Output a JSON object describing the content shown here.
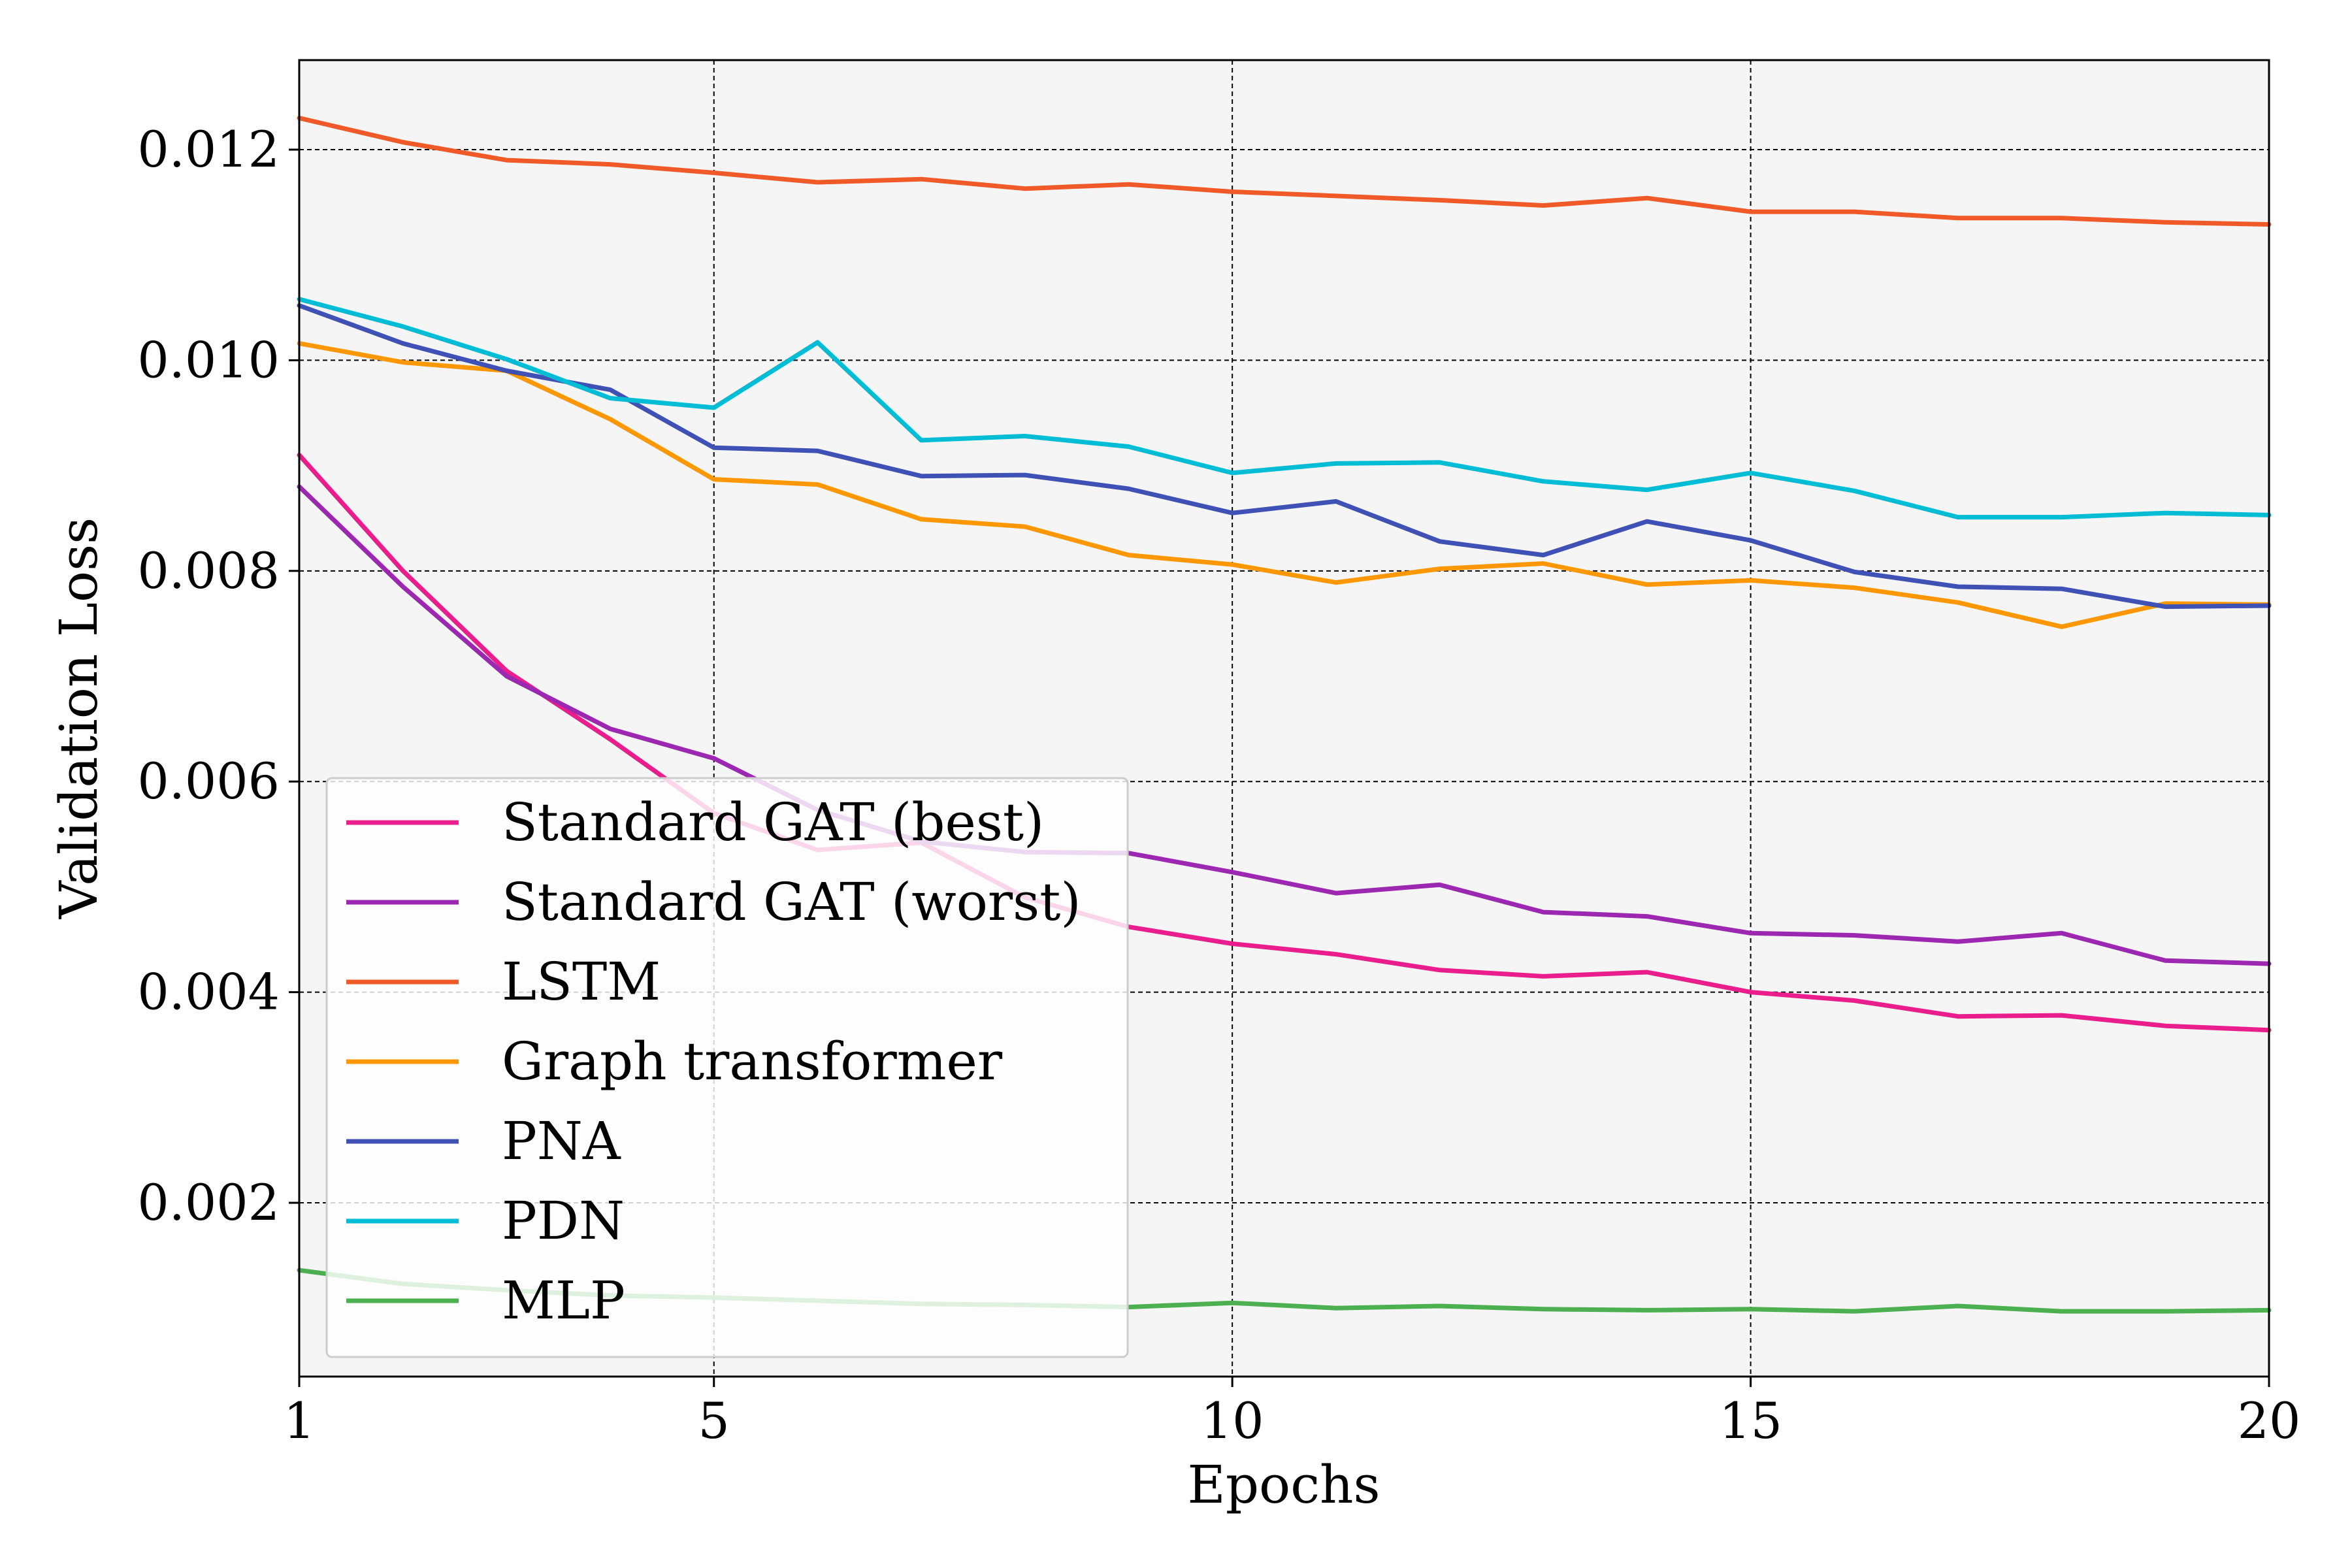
{
  "chart_data": {
    "type": "line",
    "xlabel": "Epochs",
    "ylabel": "Validation Loss",
    "xlim": [
      1,
      20
    ],
    "ylim": [
      0.00035,
      0.01285
    ],
    "x_ticks": [
      1,
      5,
      10,
      15,
      20
    ],
    "y_ticks": [
      0.002,
      0.004,
      0.006,
      0.008,
      0.01,
      0.012
    ],
    "y_tick_labels": [
      "0.002",
      "0.004",
      "0.006",
      "0.008",
      "0.010",
      "0.012"
    ],
    "grid": true,
    "legend_position": "lower-left",
    "background_color": "#f5f5f5",
    "x": [
      1,
      2,
      3,
      4,
      5,
      6,
      7,
      8,
      9,
      10,
      11,
      12,
      13,
      14,
      15,
      16,
      17,
      18,
      19,
      20
    ],
    "series": [
      {
        "name": "Standard GAT (best)",
        "color": "#e91e8c",
        "values": [
          0.0091,
          0.008,
          0.00705,
          0.0064,
          0.0057,
          0.00535,
          0.00542,
          0.0049,
          0.00462,
          0.00446,
          0.00436,
          0.00421,
          0.00415,
          0.00419,
          0.004,
          0.00392,
          0.00377,
          0.00378,
          0.00368,
          0.00364
        ]
      },
      {
        "name": "Standard GAT (worst)",
        "color": "#9c27b0",
        "values": [
          0.0088,
          0.00785,
          0.007,
          0.0065,
          0.00622,
          0.00573,
          0.00543,
          0.00533,
          0.00532,
          0.00514,
          0.00494,
          0.00502,
          0.00476,
          0.00472,
          0.00456,
          0.00454,
          0.00448,
          0.00456,
          0.0043,
          0.00427
        ]
      },
      {
        "name": "LSTM",
        "color": "#f05a28",
        "values": [
          0.0123,
          0.01207,
          0.0119,
          0.01186,
          0.01178,
          0.01169,
          0.01172,
          0.01163,
          0.01167,
          0.0116,
          0.01156,
          0.01152,
          0.01147,
          0.01154,
          0.01141,
          0.01141,
          0.01135,
          0.01135,
          0.01131,
          0.01129
        ]
      },
      {
        "name": "Graph transformer",
        "color": "#ff9800",
        "values": [
          0.01016,
          0.00998,
          0.0099,
          0.00944,
          0.00887,
          0.00882,
          0.00849,
          0.00842,
          0.00815,
          0.00806,
          0.00789,
          0.00802,
          0.00807,
          0.00787,
          0.00791,
          0.00784,
          0.0077,
          0.00747,
          0.00769,
          0.00768
        ]
      },
      {
        "name": "PNA",
        "color": "#3f51b5",
        "values": [
          0.01052,
          0.01016,
          0.0099,
          0.00972,
          0.00917,
          0.00914,
          0.0089,
          0.00891,
          0.00878,
          0.00855,
          0.00866,
          0.00828,
          0.00815,
          0.00847,
          0.00829,
          0.00799,
          0.00785,
          0.00783,
          0.00766,
          0.00767
        ]
      },
      {
        "name": "PDN",
        "color": "#00bcd4",
        "values": [
          0.01058,
          0.01032,
          0.01001,
          0.00964,
          0.00955,
          0.01017,
          0.00924,
          0.00928,
          0.00918,
          0.00893,
          0.00902,
          0.00903,
          0.00885,
          0.00877,
          0.00893,
          0.00876,
          0.00851,
          0.00851,
          0.00855,
          0.00853
        ]
      },
      {
        "name": "MLP",
        "color": "#4caf50",
        "values": [
          0.00136,
          0.00123,
          0.00117,
          0.00112,
          0.0011,
          0.00107,
          0.00104,
          0.00103,
          0.00101,
          0.00105,
          0.001,
          0.00102,
          0.00099,
          0.00098,
          0.00099,
          0.00097,
          0.00102,
          0.00097,
          0.00097,
          0.00098
        ]
      }
    ]
  }
}
